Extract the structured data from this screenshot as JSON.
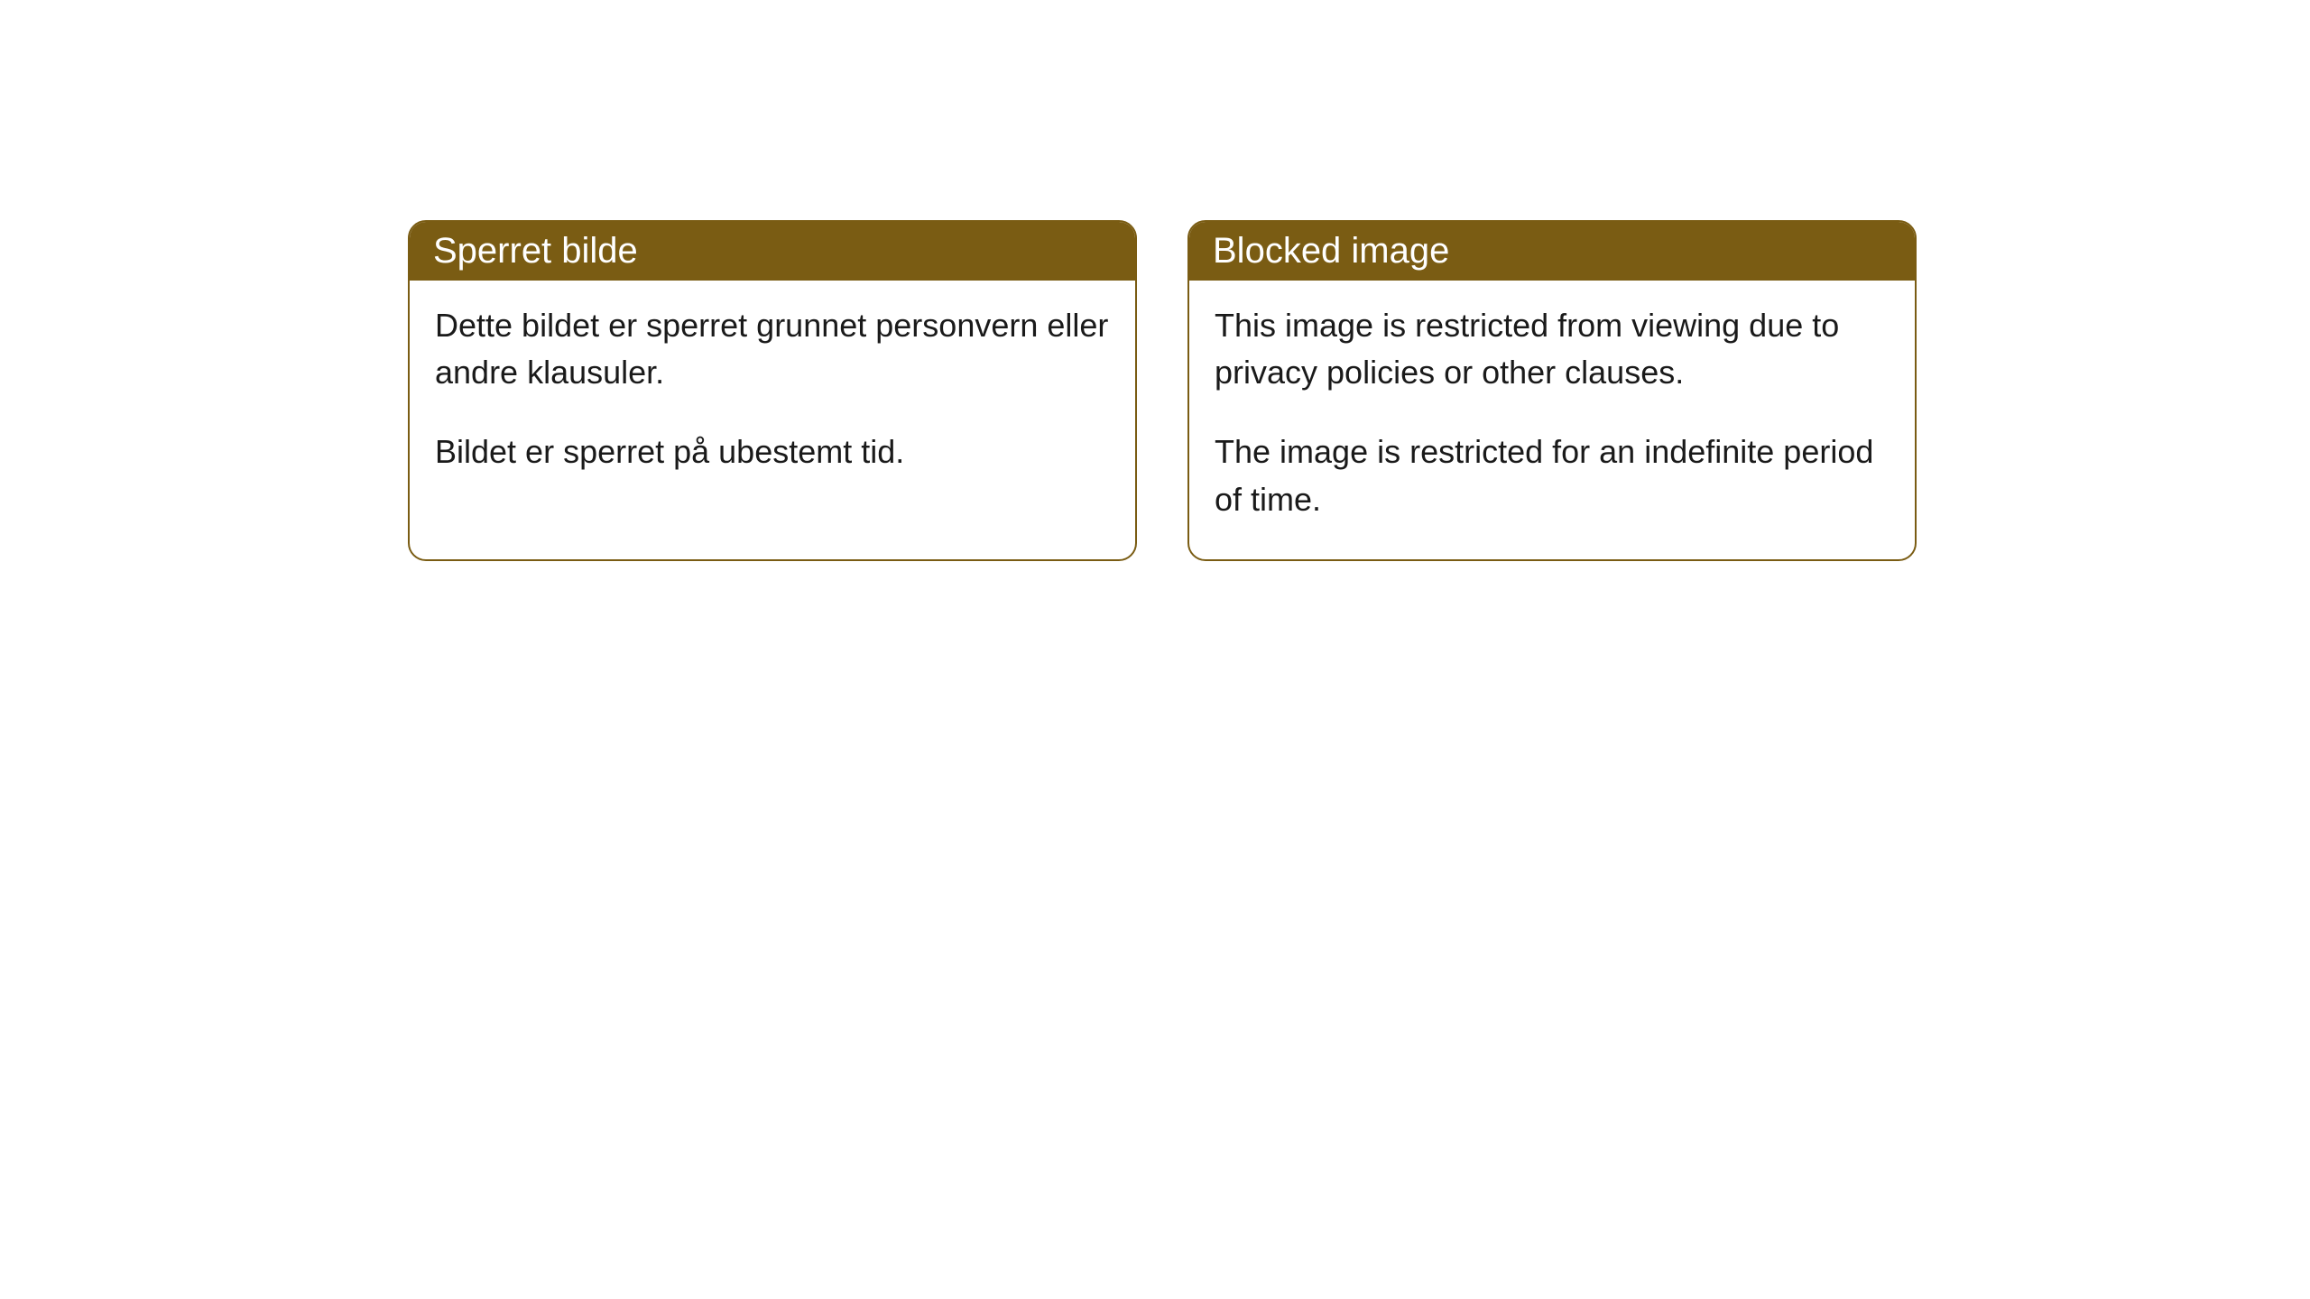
{
  "cards": [
    {
      "title": "Sperret bilde",
      "paragraph1": "Dette bildet er sperret grunnet personvern eller andre klausuler.",
      "paragraph2": "Bildet er sperret på ubestemt tid."
    },
    {
      "title": "Blocked image",
      "paragraph1": "This image is restricted from viewing due to privacy policies or other clauses.",
      "paragraph2": "The image is restricted for an indefinite period of time."
    }
  ],
  "styling": {
    "header_background": "#7a5c13",
    "header_text_color": "#ffffff",
    "border_color": "#7a5c13",
    "body_background": "#ffffff",
    "body_text_color": "#1a1a1a",
    "border_radius": 20,
    "title_fontsize": 40,
    "body_fontsize": 36
  }
}
